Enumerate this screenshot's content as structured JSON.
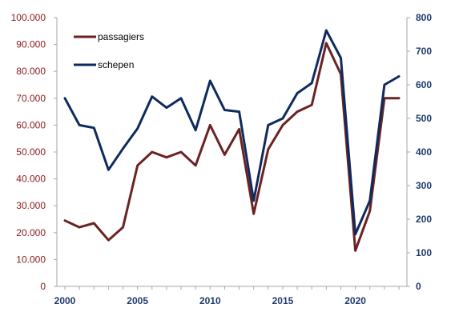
{
  "chart_data": {
    "type": "line",
    "x": [
      2000,
      2001,
      2002,
      2003,
      2004,
      2005,
      2006,
      2007,
      2008,
      2009,
      2010,
      2011,
      2012,
      2013,
      2014,
      2015,
      2016,
      2017,
      2018,
      2019,
      2020,
      2021,
      2022,
      2023
    ],
    "series": [
      {
        "name": "passagiers",
        "axis": "left",
        "color": "#6B2222",
        "values": [
          24500,
          22000,
          23500,
          17200,
          22000,
          45000,
          50000,
          48000,
          50000,
          45000,
          60000,
          49000,
          58500,
          27000,
          51000,
          60000,
          65000,
          67500,
          90500,
          79000,
          13300,
          28000,
          70000,
          70000
        ]
      },
      {
        "name": "schepen",
        "axis": "right",
        "color": "#0F2A5E",
        "values": [
          560,
          480,
          472,
          347,
          410,
          470,
          565,
          532,
          560,
          465,
          612,
          525,
          520,
          255,
          480,
          500,
          575,
          605,
          762,
          680,
          155,
          255,
          600,
          625
        ]
      }
    ],
    "y_left": {
      "range": [
        0,
        100000
      ],
      "ticks": [
        "0",
        "10.000",
        "20.000",
        "30.000",
        "40.000",
        "50.000",
        "60.000",
        "70.000",
        "80.000",
        "90.000",
        "100.000"
      ],
      "color": "#8B1A1A"
    },
    "y_right": {
      "range": [
        0,
        800
      ],
      "ticks": [
        "0",
        "100",
        "200",
        "300",
        "400",
        "500",
        "600",
        "700",
        "800"
      ],
      "color": "#1F3A6E"
    },
    "x_ticks": [
      "2000",
      "2005",
      "2010",
      "2015",
      "2020"
    ],
    "x_tick_values": [
      2000,
      2005,
      2010,
      2015,
      2020
    ],
    "title": "",
    "xlabel": "",
    "ylabel": "",
    "grid": false,
    "legend_position": "top-left"
  }
}
